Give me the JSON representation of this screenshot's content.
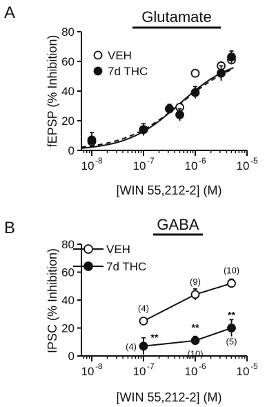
{
  "chart_data": [
    {
      "panel": "A",
      "type": "scatter",
      "title": "Glutamate",
      "xlabel": "[WIN 55,212-2] (M)",
      "ylabel": "fEPSP (% Inhibition)",
      "xscale": "log",
      "xlim_exp": [
        -8.2,
        -5
      ],
      "xtick_exps": [
        -8,
        -7,
        -6,
        -5
      ],
      "ylim": [
        0,
        80
      ],
      "yticks": [
        0,
        20,
        40,
        60,
        80
      ],
      "legend_position": "upper-left",
      "series": [
        {
          "name": "VEH",
          "marker": "open-circle",
          "x_exp": [
            -8,
            -7,
            -6.5,
            -6.3,
            -6,
            -5.5,
            -5.3
          ],
          "y": [
            6,
            14,
            28,
            29,
            52,
            57,
            61
          ],
          "err": [
            0,
            0,
            0,
            0,
            0,
            0,
            3
          ]
        },
        {
          "name": "7d THC",
          "marker": "filled-circle",
          "x_exp": [
            -8,
            -7,
            -6.5,
            -6.3,
            -6,
            -5.5,
            -5.3
          ],
          "y": [
            7,
            14,
            28,
            24,
            39,
            52,
            63
          ],
          "err": [
            5,
            4,
            3,
            4,
            4,
            5,
            4
          ]
        }
      ],
      "fits": [
        {
          "name": "VEH",
          "style": "solid",
          "ec50_exp": -6.3,
          "top": 63,
          "hill": 0.85
        },
        {
          "name": "7d THC",
          "style": "dashed",
          "ec50_exp": -6.25,
          "top": 65,
          "hill": 0.75
        }
      ]
    },
    {
      "panel": "B",
      "type": "line",
      "title": "GABA",
      "xlabel": "[WIN 55,212-2] (M)",
      "ylabel": "IPSC (% Inhibition)",
      "xscale": "log",
      "xlim_exp": [
        -8.2,
        -5
      ],
      "xtick_exps": [
        -8,
        -7,
        -6,
        -5
      ],
      "ylim": [
        0,
        80
      ],
      "yticks": [
        0,
        20,
        40,
        60,
        80
      ],
      "legend_position": "upper-left",
      "series": [
        {
          "name": "VEH",
          "marker": "open-circle",
          "x_exp": [
            -7,
            -6,
            -5.3
          ],
          "y": [
            25,
            44,
            52
          ],
          "err": [
            2,
            4,
            3
          ],
          "n": [
            "(4)",
            "(9)",
            "(10)"
          ]
        },
        {
          "name": "7d THC",
          "marker": "filled-circle",
          "x_exp": [
            -7,
            -6,
            -5.3
          ],
          "y": [
            7,
            11,
            20
          ],
          "err": [
            6,
            3,
            6
          ],
          "n": [
            "(4)",
            "(10)",
            "(5)"
          ],
          "significance": [
            "**",
            "**",
            "**"
          ]
        }
      ]
    }
  ]
}
